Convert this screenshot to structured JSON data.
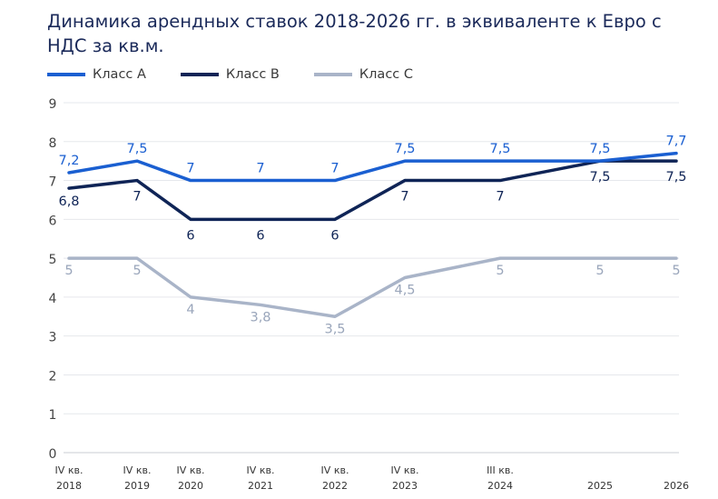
{
  "chart_data": {
    "type": "line",
    "title": "Динамика арендных ставок 2018-2026 гг. в эквиваленте к Евро с НДС за кв.м.",
    "categories": [
      [
        "IV кв.",
        "2018"
      ],
      [
        "IV кв.",
        "2019"
      ],
      [
        "IV кв.",
        "2020"
      ],
      [
        "IV кв.",
        "2021"
      ],
      [
        "IV кв.",
        "2022"
      ],
      [
        "IV кв.",
        "2023"
      ],
      [
        "III кв.",
        "2024"
      ],
      [
        "",
        "2025"
      ],
      [
        "",
        "2026"
      ]
    ],
    "series": [
      {
        "name": "Класс А",
        "color": "#1a5fd1",
        "values": [
          7.2,
          7.5,
          7,
          7,
          7,
          7.5,
          7.5,
          7.5,
          7.7
        ],
        "labels": [
          "7,2",
          "7,5",
          "7",
          "7",
          "7",
          "7,5",
          "7,5",
          "7,5",
          "7,7"
        ]
      },
      {
        "name": "Класс В",
        "color": "#0f2456",
        "values": [
          6.8,
          7,
          6,
          6,
          6,
          7,
          7,
          7.5,
          7.5
        ],
        "labels": [
          "6,8",
          "7",
          "6",
          "6",
          "6",
          "7",
          "7",
          "7,5",
          "7,5"
        ]
      },
      {
        "name": "Класс С",
        "color": "#a9b4c8",
        "values": [
          5,
          5,
          4,
          3.8,
          3.5,
          4.5,
          5,
          5,
          5
        ],
        "labels": [
          "5",
          "5",
          "4",
          "3,8",
          "3,5",
          "4,5",
          "5",
          "5",
          "5"
        ]
      }
    ],
    "ylim": [
      0,
      9
    ],
    "yticks": [
      "0",
      "1",
      "2",
      "3",
      "4",
      "5",
      "6",
      "7",
      "8",
      "9"
    ],
    "grid": true,
    "legend": "top-left"
  }
}
